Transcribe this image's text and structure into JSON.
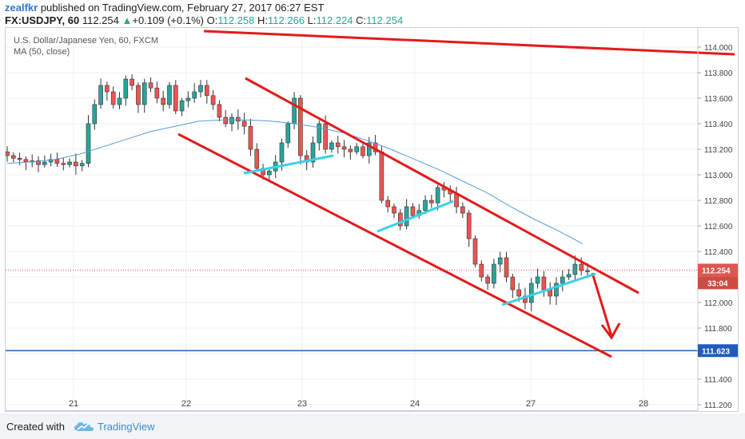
{
  "header": {
    "author": "zealfkr",
    "published_text": "published on TradingView.com, February 27, 2017 06:27 EST",
    "symbol": "FX:USDJPY, 60",
    "last": "112.254",
    "change_arrow": "▲",
    "change": "+0.109 (+0.1%)",
    "o_label": "O:",
    "o_value": "112.258",
    "h_label": "H:",
    "h_value": "112.266",
    "l_label": "L:",
    "l_value": "112.224",
    "c_label": "C:",
    "c_value": "112.254"
  },
  "legend": {
    "title": "U.S. Dollar/Japanese Yen, 60, FXCM",
    "ma": "MA (50, close)"
  },
  "footer": {
    "created_with": "Created with",
    "brand": "TradingView",
    "logo_icon": "tradingview-cloud-icon"
  },
  "colors": {
    "up": "#26a69a",
    "down": "#ef5350",
    "ma": "#5b9bd5",
    "channel": "#e31a1c",
    "support": "#2b6cb0",
    "trend": "#39d1e8",
    "price_label": "#e0564e",
    "level_label": "#1e5bbf"
  },
  "chart_data": {
    "type": "candlestick",
    "x_ticks": [
      "21",
      "22",
      "23",
      "24",
      "27",
      "28"
    ],
    "y_ticks": [
      "114.000",
      "113.800",
      "113.600",
      "113.400",
      "113.200",
      "113.000",
      "112.800",
      "112.600",
      "112.400",
      "112.200",
      "112.000",
      "111.800",
      "111.600",
      "111.400",
      "111.200"
    ],
    "ylim": [
      111.15,
      114.15
    ],
    "current_price": "112.254",
    "countdown": "33:04",
    "support_level": "111.623",
    "close_path": [
      113.15,
      113.13,
      113.12,
      113.1,
      113.11,
      113.08,
      113.1,
      113.12,
      113.09,
      113.08,
      113.1,
      113.07,
      113.09,
      113.4,
      113.55,
      113.7,
      113.65,
      113.55,
      113.6,
      113.75,
      113.7,
      113.55,
      113.72,
      113.68,
      113.6,
      113.55,
      113.7,
      113.5,
      113.58,
      113.6,
      113.65,
      113.7,
      113.62,
      113.55,
      113.45,
      113.4,
      113.45,
      113.42,
      113.38,
      113.2,
      113.05,
      113.0,
      113.03,
      113.1,
      113.25,
      113.4,
      113.6,
      113.15,
      113.1,
      113.25,
      113.4,
      113.2,
      113.25,
      113.22,
      113.2,
      113.18,
      113.22,
      113.15,
      113.25,
      113.18,
      112.8,
      112.75,
      112.7,
      112.6,
      112.75,
      112.68,
      112.72,
      112.8,
      112.78,
      112.9,
      112.88,
      112.85,
      112.75,
      112.7,
      112.5,
      112.3,
      112.2,
      112.15,
      112.3,
      112.35,
      112.2,
      112.1,
      112.05,
      112.0,
      112.15,
      112.2,
      112.1,
      112.05,
      112.15,
      112.2,
      112.22,
      112.3,
      112.25,
      112.25
    ],
    "ma_path": [
      113.09,
      113.1,
      113.12,
      113.16,
      113.22,
      113.28,
      113.34,
      113.38,
      113.42,
      113.43,
      113.43,
      113.42,
      113.4,
      113.37,
      113.33,
      113.27,
      113.2,
      113.12,
      113.04,
      112.95,
      112.86,
      112.75,
      112.65,
      112.56,
      112.46
    ]
  }
}
